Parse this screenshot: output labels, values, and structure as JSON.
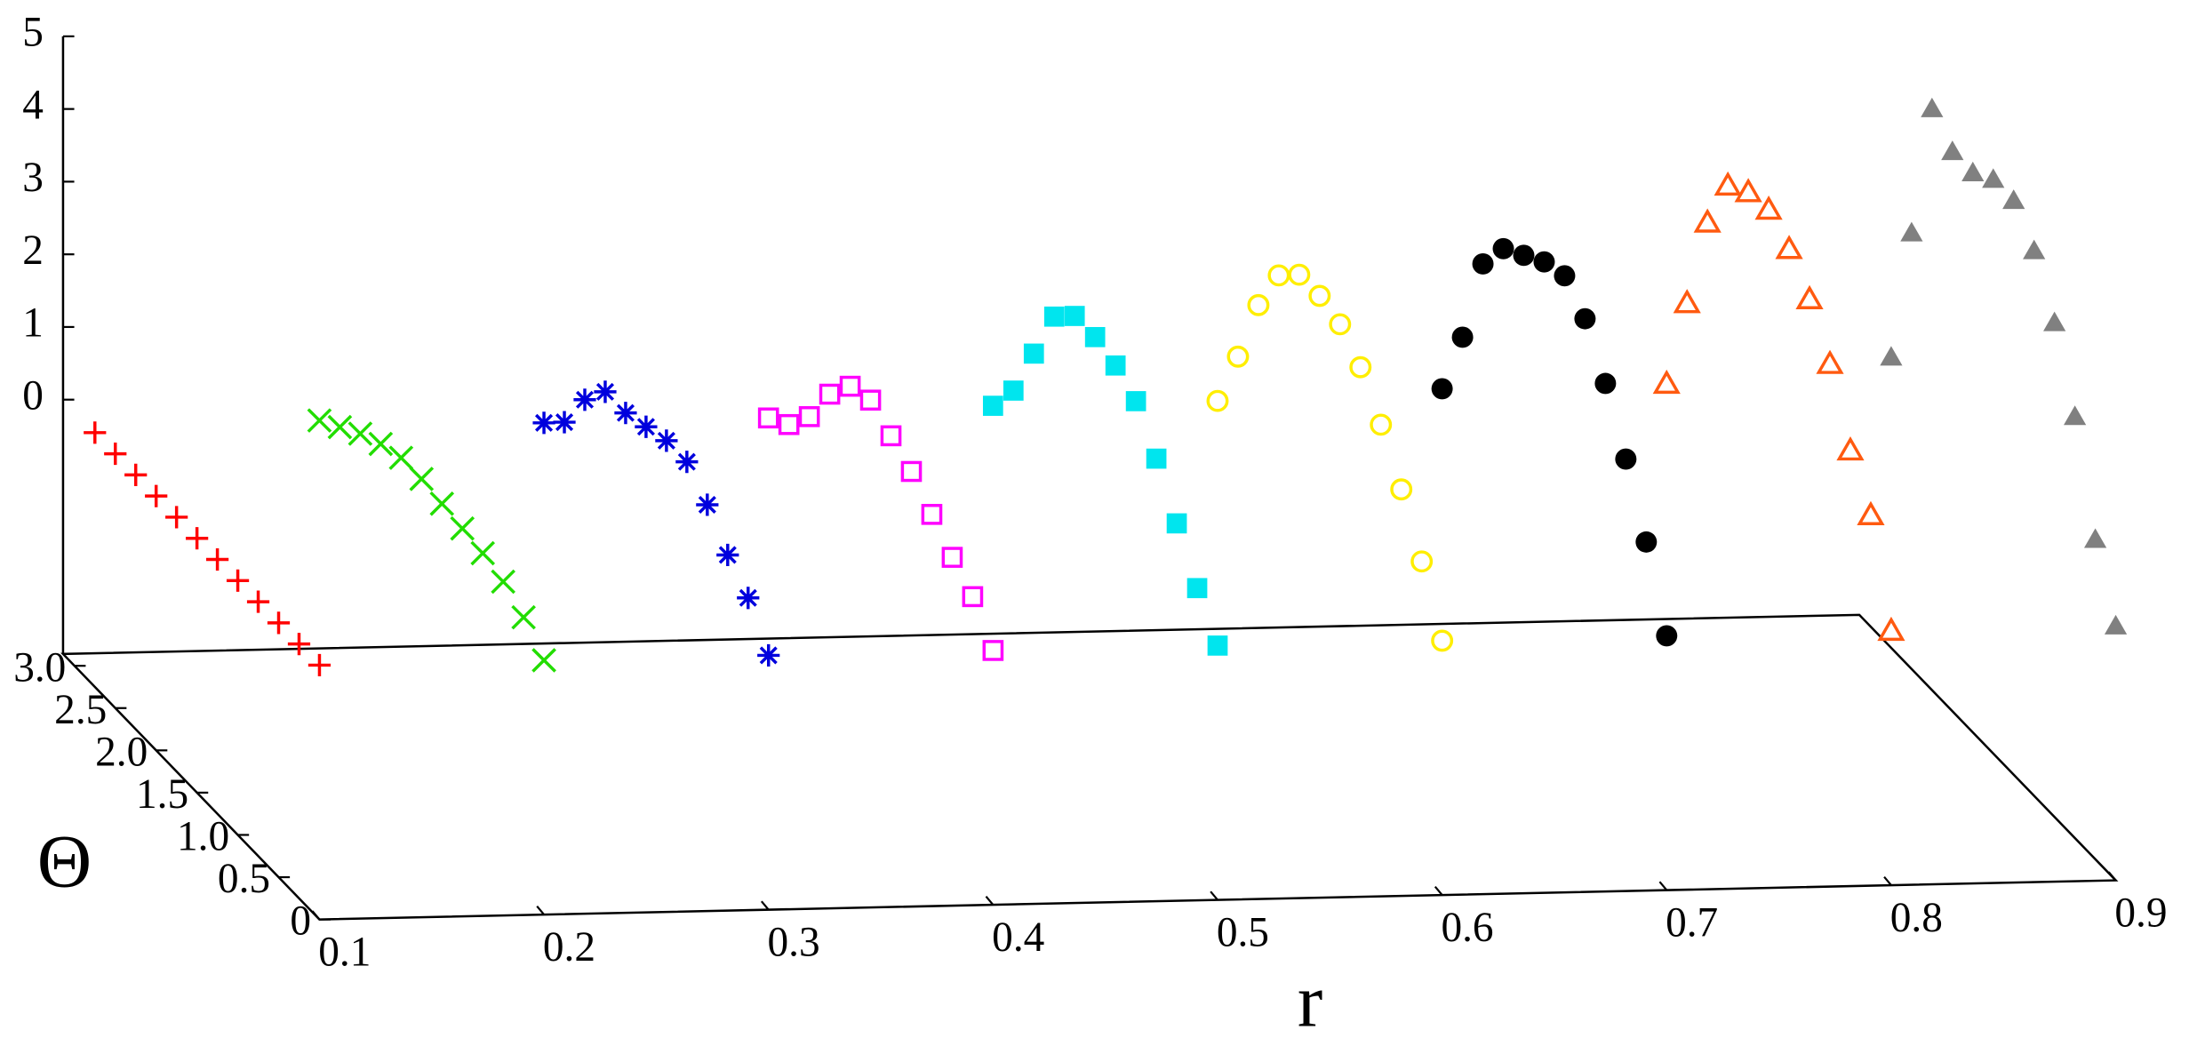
{
  "chart_data": {
    "type": "scatter3d",
    "x_label": "r",
    "y_label": "Θ",
    "xlim": [
      0.1,
      0.9
    ],
    "xticks": [
      0.1,
      0.2,
      0.3,
      0.4,
      0.5,
      0.6,
      0.7,
      0.8,
      0.9
    ],
    "ylim": [
      0,
      3.14
    ],
    "yticks": [
      0,
      {
        "value": 0.5,
        "label": "0.5"
      },
      {
        "value": 1.0,
        "label": "1.0"
      },
      {
        "value": 1.5,
        "label": "1.5"
      },
      {
        "value": 2.0,
        "label": "2.0"
      },
      {
        "value": 2.5,
        "label": "2.5"
      },
      {
        "value": 3.0,
        "label": "3.0"
      }
    ],
    "zlim": [
      -3.5,
      5
    ],
    "zticks": [
      0,
      1,
      2,
      3,
      4,
      5
    ],
    "theta": [
      0,
      0.25,
      0.5,
      0.75,
      1.0,
      1.25,
      1.5,
      1.75,
      2.0,
      2.25,
      2.5,
      2.75
    ],
    "series": [
      {
        "r": 0.1,
        "color": "#ff0000",
        "marker": "plus",
        "values": [
          0,
          0,
          0,
          0,
          0,
          0,
          0,
          0,
          0,
          0,
          0,
          0
        ]
      },
      {
        "r": 0.2,
        "color": "#22dd00",
        "marker": "x",
        "values": [
          0,
          0.3,
          0.5,
          0.6,
          0.65,
          0.7,
          0.75,
          0.75,
          0.65,
          0.5,
          0.3,
          0.1
        ]
      },
      {
        "r": 0.3,
        "color": "#0000dd",
        "marker": "star",
        "values": [
          0,
          0.5,
          0.8,
          1.2,
          1.5,
          1.5,
          1.4,
          1.3,
          1.3,
          0.9,
          0.3,
          0
        ]
      },
      {
        "r": 0.4,
        "color": "#ff00ff",
        "marker": "square-open",
        "values": [
          0,
          0.45,
          0.7,
          1.0,
          1.3,
          1.5,
          1.7,
          1.6,
          1.2,
          0.6,
          0.2,
          0
        ]
      },
      {
        "r": 0.5,
        "color": "#00e5ee",
        "marker": "square",
        "values": [
          0,
          0.5,
          1.1,
          1.7,
          2.2,
          2.4,
          2.5,
          2.5,
          2.2,
          1.4,
          0.6,
          0.1
        ]
      },
      {
        "r": 0.6,
        "color": "#ffee00",
        "marker": "circle-open",
        "values": [
          0,
          0.8,
          1.5,
          2.1,
          2.6,
          2.9,
          3.0,
          3.0,
          2.7,
          2.0,
          1.0,
          0.1
        ]
      },
      {
        "r": 0.7,
        "color": "#000000",
        "marker": "circle",
        "values": [
          0,
          1.0,
          1.85,
          2.6,
          3.2,
          3.5,
          3.4,
          3.2,
          3.0,
          2.5,
          1.2,
          0.2
        ]
      },
      {
        "r": 0.8,
        "color": "#ff5a10",
        "marker": "triangle-open",
        "values": [
          0,
          1.3,
          1.9,
          2.8,
          3.4,
          3.8,
          4.05,
          4.0,
          3.8,
          3.0,
          1.6,
          0.2
        ]
      },
      {
        "r": 0.9,
        "color": "#808080",
        "marker": "triangle",
        "values": [
          0,
          0.9,
          2.3,
          3.3,
          4.0,
          4.4,
          4.4,
          4.2,
          4.2,
          4.5,
          2.5,
          0.5
        ]
      }
    ]
  }
}
